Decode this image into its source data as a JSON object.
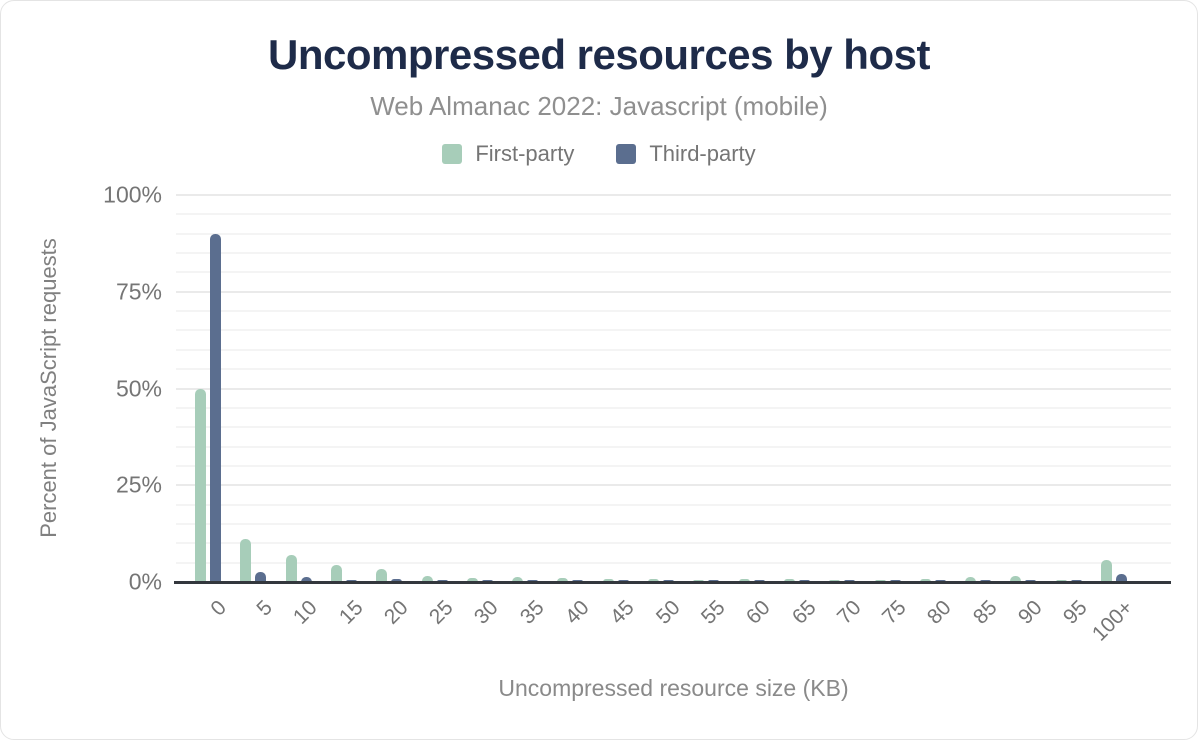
{
  "title": "Uncompressed resources by host",
  "subtitle": "Web Almanac 2022: Javascript (mobile)",
  "legend": [
    {
      "label": "First-party",
      "color": "#a7cdb9"
    },
    {
      "label": "Third-party",
      "color": "#5b6e8f"
    }
  ],
  "colors": {
    "title": "#1e2b49",
    "subtitle": "#8f8f8f",
    "axis_text": "#757575",
    "axis_line": "#33373d",
    "gridline_minor": "#f4f4f4",
    "gridline_major": "#eaeaea",
    "first_party": "#a7cdb9",
    "third_party": "#5b6e8f"
  },
  "chart_data": {
    "type": "bar",
    "title": "Uncompressed resources by host",
    "subtitle": "Web Almanac 2022: Javascript (mobile)",
    "xlabel": "Uncompressed resource size (KB)",
    "ylabel": "Percent of JavaScript requests",
    "ylim": [
      0,
      100
    ],
    "yticks": [
      0,
      25,
      50,
      75,
      100
    ],
    "ytick_labels": [
      "0%",
      "25%",
      "50%",
      "75%",
      "100%"
    ],
    "grid": "horizontal minor every 5%, major every 25%",
    "legend_position": "top",
    "categories": [
      "0",
      "5",
      "10",
      "15",
      "20",
      "25",
      "30",
      "35",
      "40",
      "45",
      "50",
      "55",
      "60",
      "65",
      "70",
      "75",
      "80",
      "85",
      "90",
      "95",
      "100+"
    ],
    "series": [
      {
        "name": "First-party",
        "color": "#a7cdb9",
        "values": [
          50,
          11,
          7,
          4.5,
          3.4,
          1.5,
          1.1,
          1.3,
          1.0,
          0.8,
          0.7,
          0.6,
          0.7,
          0.8,
          0.5,
          0.4,
          0.7,
          1.2,
          1.5,
          0.3,
          5.8
        ]
      },
      {
        "name": "Third-party",
        "color": "#5b6e8f",
        "values": [
          90,
          2.5,
          1.4,
          0.6,
          0.8,
          0.3,
          0.2,
          0.2,
          0.2,
          0.2,
          0.2,
          0.2,
          0.2,
          0.2,
          0.1,
          0.1,
          0.2,
          0.2,
          0.2,
          0.2,
          2.2
        ]
      }
    ]
  }
}
